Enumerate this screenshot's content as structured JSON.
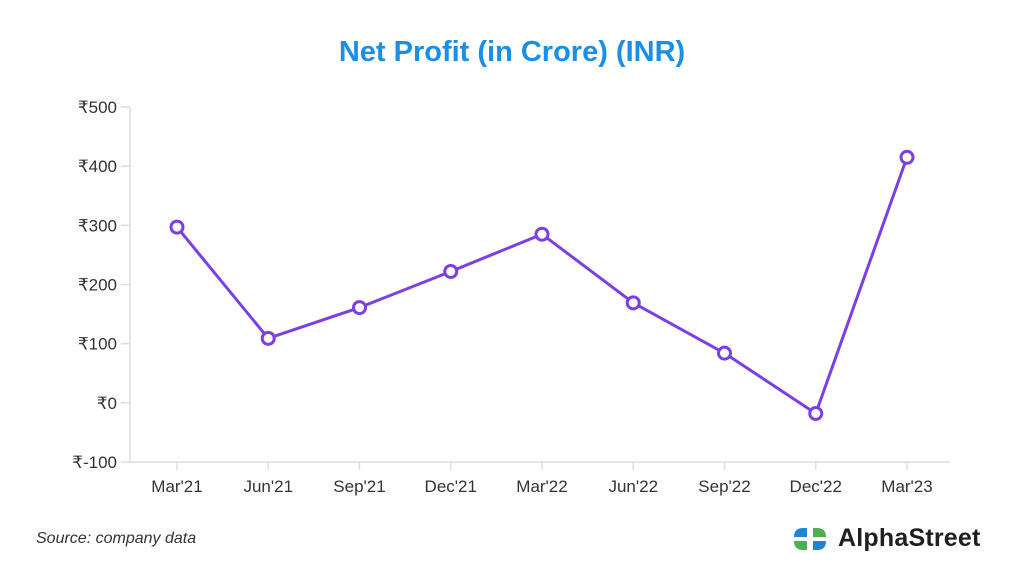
{
  "colors": {
    "title": "#1a8fe8",
    "series": "#7b3fe4",
    "axis": "#dddddd"
  },
  "chart_data": {
    "type": "line",
    "title": "Net Profit (in Crore) (INR)",
    "categories": [
      "Mar'21",
      "Jun'21",
      "Sep'21",
      "Dec'21",
      "Mar'22",
      "Jun'22",
      "Sep'22",
      "Dec'22",
      "Mar'23"
    ],
    "series": [
      {
        "values": [
          297,
          109,
          161,
          222,
          285,
          169,
          84,
          -18,
          415
        ]
      }
    ],
    "ylim": [
      -100,
      500
    ],
    "yticks": [
      500,
      400,
      300,
      200,
      100,
      0,
      -100
    ],
    "ytick_labels": [
      "₹500",
      "₹400",
      "₹300",
      "₹200",
      "₹100",
      "₹0",
      "₹-100"
    ],
    "xlabel": "",
    "ylabel": "",
    "grid": false,
    "markers": "hollow-circle"
  },
  "footer": {
    "source": "Source: company data",
    "brand": "AlphaStreet",
    "logo_icon": "alphastreet-logo-icon"
  }
}
